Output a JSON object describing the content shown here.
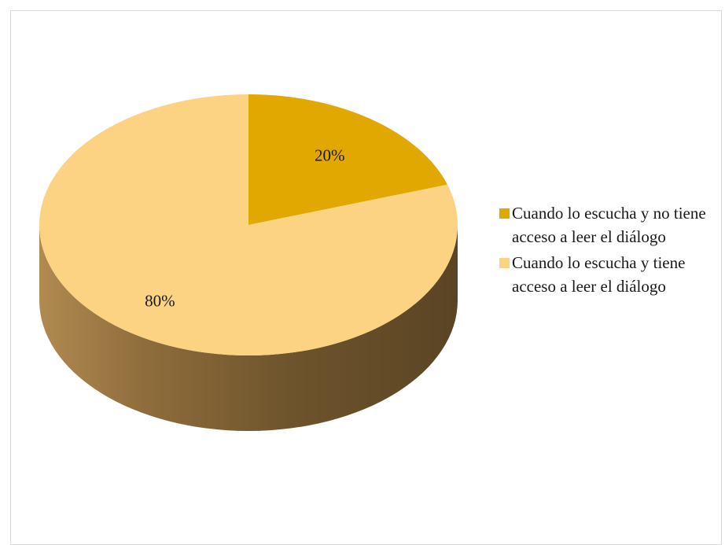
{
  "chart_data": {
    "type": "pie",
    "style": "3d",
    "labels": [
      "Cuando lo escucha y no tiene acceso a leer el diálogo",
      "Cuando lo escucha y tiene acceso a leer el diálogo"
    ],
    "values": [
      20,
      80
    ],
    "value_labels": [
      "20%",
      "80%"
    ],
    "colors": [
      "#e0a800",
      "#fcd283"
    ],
    "side_colors": [
      "#b8860b",
      "#8a6b3a"
    ],
    "legend_position": "right"
  }
}
